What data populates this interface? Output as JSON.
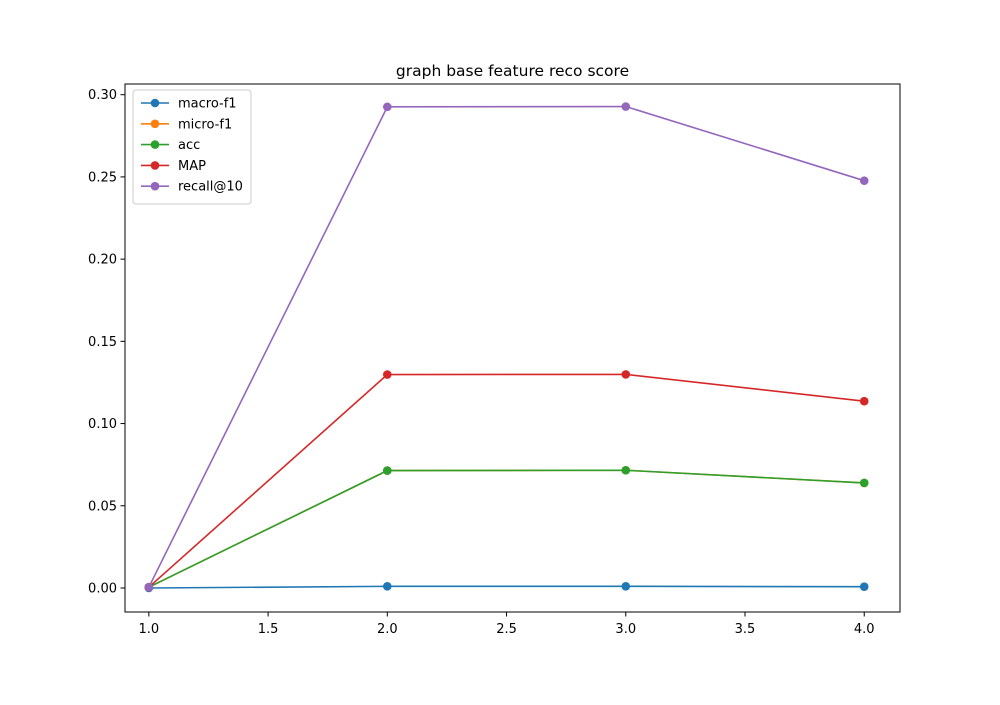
{
  "chart_data": {
    "type": "line",
    "title": "graph base feature reco score",
    "xlabel": "",
    "ylabel": "",
    "x": [
      1.0,
      2.0,
      3.0,
      4.0
    ],
    "xlim": [
      0.9,
      4.15
    ],
    "ylim": [
      -0.0146,
      0.3065
    ],
    "x_ticks": [
      "1.0",
      "1.5",
      "2.0",
      "2.5",
      "3.0",
      "3.5",
      "4.0"
    ],
    "y_ticks": [
      "0.00",
      "0.05",
      "0.10",
      "0.15",
      "0.20",
      "0.25",
      "0.30"
    ],
    "grid": false,
    "legend_position": "top-left",
    "markers": "circle",
    "series": [
      {
        "name": "macro-f1",
        "color": "#1f77b4",
        "values": [
          0.0,
          0.001,
          0.001,
          0.0008
        ]
      },
      {
        "name": "micro-f1",
        "color": "#ff7f0e",
        "values": [
          0.0005,
          0.0714,
          0.0716,
          0.0639
        ]
      },
      {
        "name": "acc",
        "color": "#2ca02c",
        "values": [
          0.0005,
          0.0714,
          0.0716,
          0.0639
        ]
      },
      {
        "name": "MAP",
        "color": "#d62728",
        "values": [
          0.0005,
          0.1298,
          0.1299,
          0.1136
        ]
      },
      {
        "name": "recall@10",
        "color": "#9467bd",
        "values": [
          0.0005,
          0.2926,
          0.2928,
          0.2477
        ]
      }
    ]
  }
}
